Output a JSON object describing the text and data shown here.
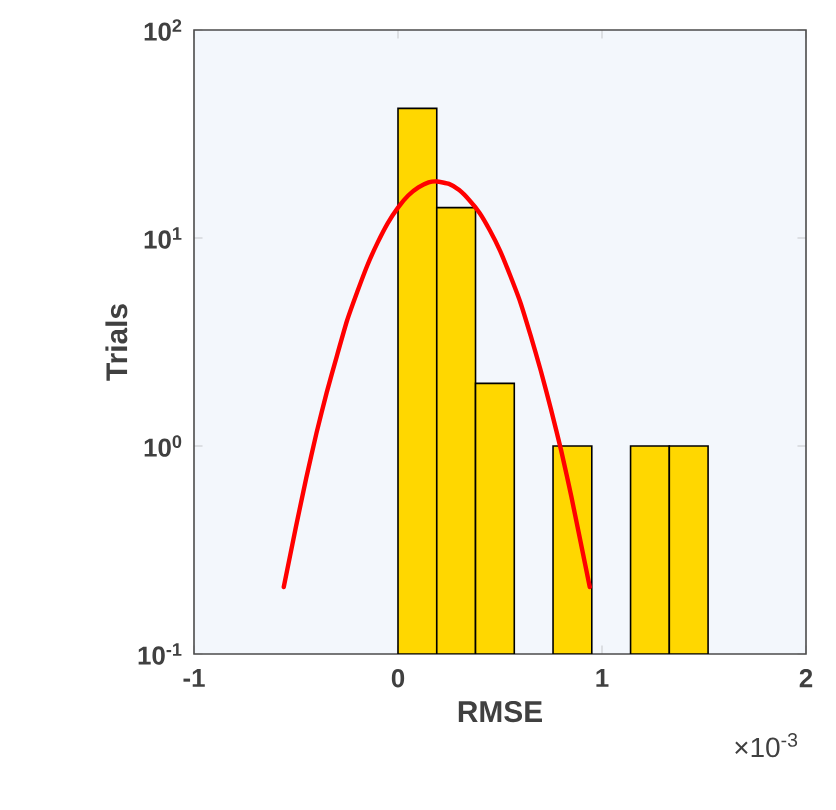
{
  "chart_data": {
    "type": "histogram",
    "xlabel": "RMSE",
    "ylabel": "Trials",
    "annotations": [
      "×10$^{-3}$"
    ],
    "bins": [
      0,
      0.19,
      0.38,
      0.57,
      0.76,
      0.95,
      1.14,
      1.33,
      1.52
    ],
    "values": [
      42,
      14,
      2,
      null,
      1,
      null,
      1,
      1
    ],
    "color": "#ffd700",
    "series": [
      {
        "type": "line",
        "color": "#ff0000",
        "x": [
          -0.56,
          -0.5,
          -0.45,
          -0.4,
          -0.35,
          -0.3,
          -0.25,
          -0.2,
          -0.15,
          -0.1,
          -0.05,
          0,
          0.05,
          0.1,
          0.15,
          0.19,
          0.25,
          0.3,
          0.35,
          0.4,
          0.45,
          0.5,
          0.55,
          0.6,
          0.65,
          0.7,
          0.75,
          0.8,
          0.85,
          0.94
        ],
        "values": [
          0.21,
          0.41,
          0.7,
          1.15,
          1.8,
          2.7,
          4,
          5.5,
          7.4,
          9.5,
          11.8,
          14,
          16,
          17.5,
          18.5,
          18.7,
          18.2,
          17,
          15.2,
          13.2,
          10.9,
          8.7,
          6.6,
          4.9,
          3.4,
          2.3,
          1.5,
          0.95,
          0.57,
          0.21
        ]
      }
    ],
    "log": "y",
    "xlim": [
      -1,
      2
    ],
    "ylim": [
      0.1,
      100
    ],
    "xticks": [
      -1,
      0,
      1,
      2
    ],
    "yticks": [
      {
        "value": 0.1,
        "label": "10$^{-1}$"
      },
      {
        "value": 1,
        "label": "10$^{0}$"
      },
      {
        "value": 10,
        "label": "10$^{1}$"
      },
      {
        "value": 100,
        "label": "10$^{2}$"
      }
    ]
  }
}
